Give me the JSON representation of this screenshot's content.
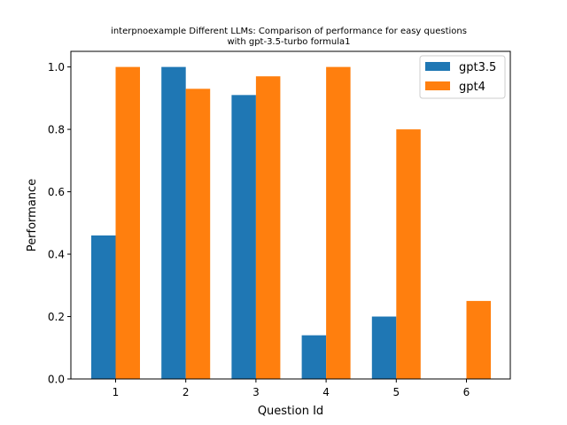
{
  "chart_data": {
    "type": "bar",
    "title_lines": [
      "interpnoexample Different LLMs: Comparison of performance for easy questions",
      "with gpt-3.5-turbo formula1"
    ],
    "xlabel": "Question Id",
    "ylabel": "Performance",
    "categories": [
      "1",
      "2",
      "3",
      "4",
      "5",
      "6"
    ],
    "ylim": [
      0,
      1.05
    ],
    "yticks": [
      "0.0",
      "0.2",
      "0.4",
      "0.6",
      "0.8",
      "1.0"
    ],
    "grid": false,
    "legend_position": "top-right",
    "series": [
      {
        "name": "gpt3.5",
        "color": "#1f77b4",
        "values": [
          0.46,
          1.0,
          0.91,
          0.14,
          0.2,
          0.0
        ]
      },
      {
        "name": "gpt4",
        "color": "#ff7f0e",
        "values": [
          1.0,
          0.93,
          0.97,
          1.0,
          0.8,
          0.25
        ]
      }
    ]
  }
}
